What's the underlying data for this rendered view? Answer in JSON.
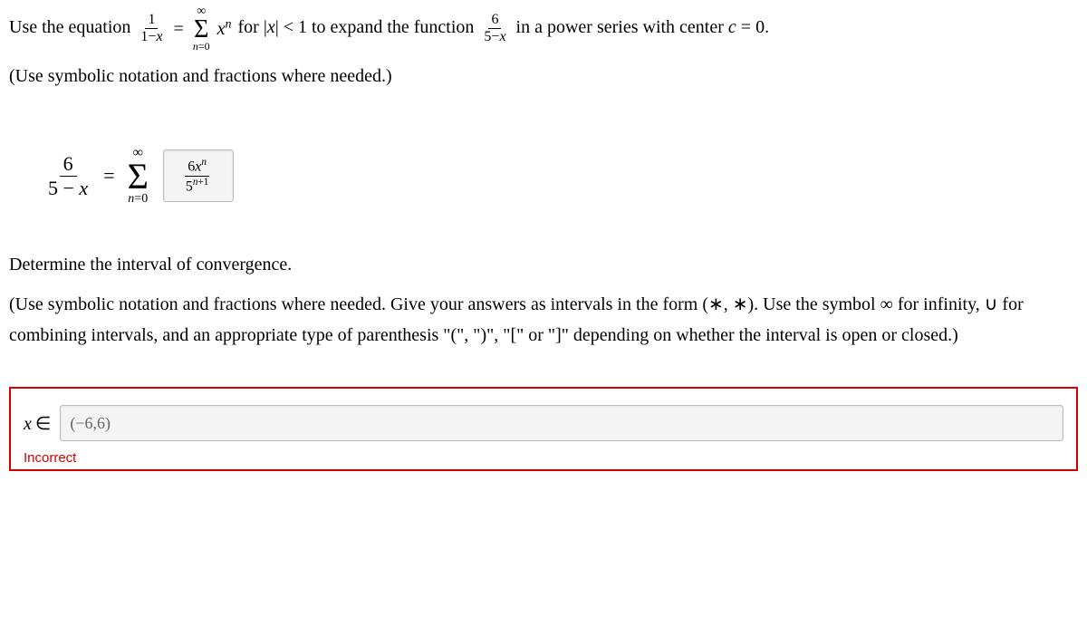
{
  "p1": {
    "lead": "Use the equation",
    "eq_lhs_frac_num": "1",
    "eq_lhs_frac_den_pre": "1−",
    "eq_lhs_frac_den_var": "x",
    "equals": "=",
    "sum_top": "∞",
    "sum_sigma": "Σ",
    "sum_bot_var": "n",
    "sum_bot_rest": "=0",
    "sum_term_base": "x",
    "sum_term_exp": "n",
    "mid1": "for |",
    "abs_var": "x",
    "mid2": "| < 1 to expand the function",
    "rhs_frac_num": "6",
    "rhs_frac_den_pre": "5−",
    "rhs_frac_den_var": "x",
    "tail_pre": "in a power series with center ",
    "c_var": "c",
    "tail_post": " = 0."
  },
  "p2": "(Use symbolic notation and fractions where needed.)",
  "answer1": {
    "lhs_num": "6",
    "lhs_den_pre": "5 − ",
    "lhs_den_var": "x",
    "equals": "=",
    "sum_top": "∞",
    "sum_sigma": "Σ",
    "sum_bot_var": "n",
    "sum_bot_rest": "=0",
    "input_num_lead": "6",
    "input_num_base": "x",
    "input_num_exp": "n",
    "input_den_base": "5",
    "input_den_exp_var": "n",
    "input_den_exp_rest": "+1"
  },
  "p3": "Determine the interval of convergence.",
  "p4": "(Use symbolic notation and fractions where needed. Give your answers as intervals in the form (∗, ∗). Use the symbol ∞ for infinity, ∪ for combining intervals, and an appropriate type of parenthesis \"(\", \")\", \"[\" or \"]\" depending on whether the interval is open or closed.)",
  "answer2": {
    "x_var": "x",
    "in_sym": "∈",
    "value": "(−6,6)"
  },
  "feedback": "Incorrect"
}
